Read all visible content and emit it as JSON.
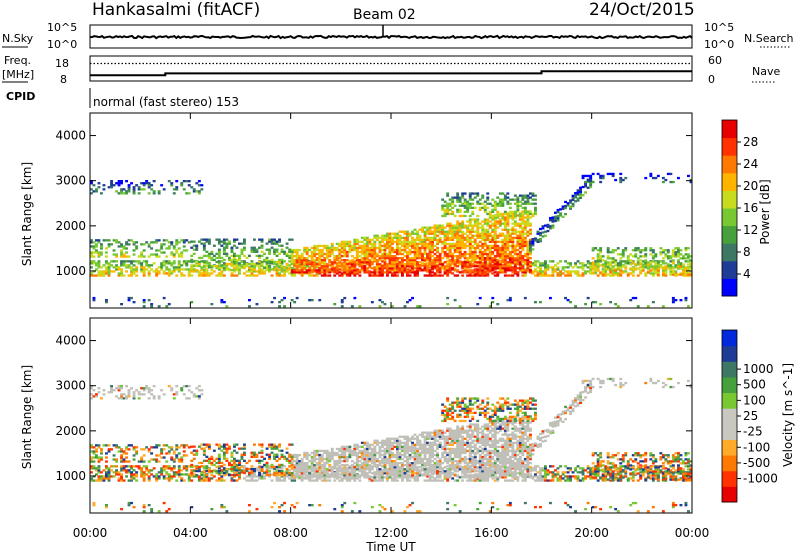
{
  "header": {
    "station": "Hankasalmi (fitACF)",
    "beam": "Beam 02",
    "date": "24/Oct/2015"
  },
  "strip_labels": {
    "nsky": "N.Sky",
    "nsky_top": "10^5",
    "nsky_bottom": "10^0",
    "nsearch": "N.Search",
    "nsearch_top": "10^5",
    "nsearch_bottom": "10^0",
    "freq_line1": "Freq.",
    "freq_line2": "[MHz]",
    "freq_top": "18",
    "freq_bottom": "8",
    "nave_top": "60",
    "nave_bottom": "0",
    "nave": "Nave",
    "cpid": "CPID",
    "mode": "normal (fast stereo) 153"
  },
  "colors": {
    "power_scale": [
      "#0000ff",
      "#1e3c96",
      "#3c7864",
      "#46a03c",
      "#78c832",
      "#c8dc1e",
      "#ffb400",
      "#ff7800",
      "#ff3200",
      "#e60000"
    ],
    "velocity_scale": [
      "#e60000",
      "#ff3200",
      "#ff7800",
      "#ffaa28",
      "#c8c8c0",
      "#c8c8c0",
      "#78c832",
      "#46a03c",
      "#3c7864",
      "#1e3c96",
      "#0028dc"
    ],
    "ground_scatter": "#c0c0b8"
  },
  "chart_data": [
    {
      "type": "line",
      "name": "nsky-nsearch-strip",
      "ylim_label": [
        "10^0",
        "10^5"
      ],
      "notes_series": [
        {
          "name": "N.Sky",
          "style": "solid"
        },
        {
          "name": "N.Search",
          "style": "dotted"
        }
      ]
    },
    {
      "type": "line",
      "name": "freq-nave-strip",
      "x": [
        0,
        2.8,
        3.0,
        6.0,
        18.0,
        24.0
      ],
      "series": [
        {
          "name": "Freq.",
          "style": "solid",
          "values": [
            10.2,
            10.2,
            11.0,
            11.0,
            12.0,
            12.0
          ]
        },
        {
          "name": "Nave",
          "style": "dotted",
          "values": [
            45,
            45,
            45,
            45,
            45,
            45
          ]
        }
      ],
      "ylim_left": [
        8,
        18
      ],
      "ylim_right": [
        0,
        60
      ]
    },
    {
      "type": "heatmap",
      "name": "power-panel",
      "ylabel": "Slant Range [km]",
      "colorbar_label": "Power [dB]",
      "colorbar_ticks": [
        "4",
        "8",
        "12",
        "16",
        "20",
        "24",
        "28"
      ],
      "x_range": [
        0,
        24
      ],
      "y_range": [
        180,
        4500
      ],
      "y_ticks": [
        "1000",
        "2000",
        "3000",
        "4000"
      ]
    },
    {
      "type": "heatmap",
      "name": "velocity-panel",
      "ylabel": "Slant Range [km]",
      "colorbar_label": "Velocity [m s^-1]",
      "colorbar_ticks": [
        "-1000",
        "-500",
        "-100",
        "-25",
        "25",
        "100",
        "500",
        "1000"
      ],
      "x_range": [
        0,
        24
      ],
      "y_range": [
        180,
        4500
      ],
      "y_ticks": [
        "1000",
        "2000",
        "3000",
        "4000"
      ]
    }
  ],
  "x_axis": {
    "ticks": [
      "00:00",
      "04:00",
      "08:00",
      "12:00",
      "16:00",
      "20:00",
      "00:00"
    ],
    "label": "Time UT"
  }
}
